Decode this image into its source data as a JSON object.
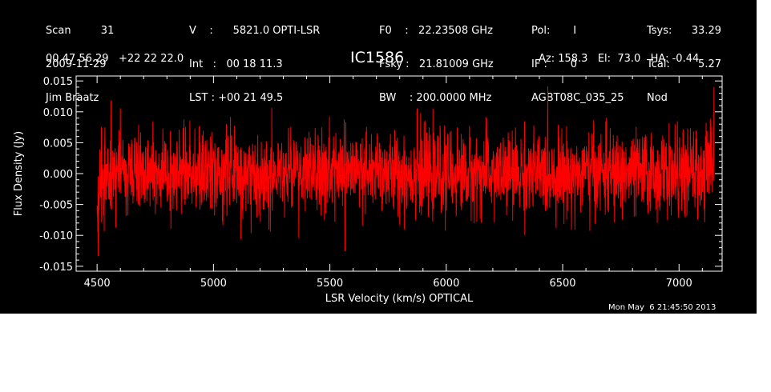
{
  "header": {
    "col1": [
      "Scan         31",
      "2009-11-29",
      "Jim Braatz"
    ],
    "col2": [
      "V    :      5821.0 OPTI-LSR",
      "Int   :   00 18 11.3",
      "LST : +00 21 49.5"
    ],
    "col3": [
      "F0    :   22.23508 GHz",
      "Fsky :   21.81009 GHz",
      "BW    : 200.0000 MHz"
    ],
    "col4": [
      "Pol:       I",
      "IF :       0",
      "AGBT08C_035_25"
    ],
    "col5": [
      "Tsys:",
      "Tcal:",
      "Nod"
    ],
    "col6": [
      "33.29",
      "5.27",
      ""
    ],
    "coords": "00 47 56.29   +22 22 22.0",
    "source": "IC1586",
    "azel": "Az: 158.3   El:  73.0   HA: -0.44",
    "timestamp": "Mon May  6 21:45:50 2013"
  },
  "chart_data": {
    "type": "line",
    "xlabel": "LSR Velocity (km/s) OPTICAL",
    "ylabel": "Flux Density (Jy)",
    "xlim": [
      4410,
      7185
    ],
    "ylim": [
      -0.0158,
      0.0158
    ],
    "x_ticks": [
      4500,
      5000,
      5500,
      6000,
      6500,
      7000
    ],
    "x_tick_labels": [
      "4500",
      "5000",
      "5500",
      "6000",
      "6500",
      "7000"
    ],
    "y_ticks": [
      0.015,
      0.01,
      0.005,
      0.0,
      -0.005,
      -0.01,
      -0.015
    ],
    "y_tick_labels": [
      "0.015",
      "0.010",
      "0.005",
      "0.000",
      "-0.005",
      "-0.010",
      "-0.015"
    ],
    "series": [
      {
        "color": "#ff0000",
        "x_start": 4500,
        "x_end": 7150,
        "rms": 0.0033,
        "features": [
          {
            "x": 4505,
            "y": -0.0133
          },
          {
            "x": 4520,
            "y": -0.0075
          },
          {
            "x": 4560,
            "y": 0.0118
          },
          {
            "x": 4600,
            "y": 0.0105
          },
          {
            "x": 5565,
            "y": -0.0125
          },
          {
            "x": 5875,
            "y": 0.0105
          },
          {
            "x": 7140,
            "y": 0.0075
          },
          {
            "x": 7150,
            "y": 0.014
          }
        ]
      }
    ]
  }
}
